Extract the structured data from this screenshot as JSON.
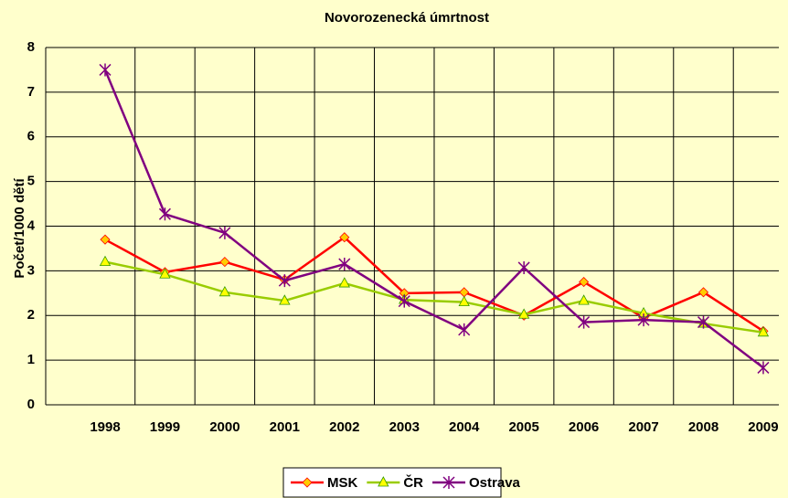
{
  "chart_data": {
    "type": "line",
    "title": "Novorozenecká úmrtnost",
    "y_label": "Počet/1000 dětí",
    "categories": [
      "1998",
      "1999",
      "2000",
      "2001",
      "2002",
      "2003",
      "2004",
      "2005",
      "2006",
      "2007",
      "2008",
      "2009"
    ],
    "series": [
      {
        "name": "MSK",
        "color": "#ff0000",
        "marker": "diamond",
        "values": [
          3.7,
          2.97,
          3.2,
          2.8,
          3.75,
          2.5,
          2.52,
          2.0,
          2.75,
          1.95,
          2.52,
          1.65
        ]
      },
      {
        "name": "ČR",
        "color": "#99cc00",
        "marker": "triangle",
        "values": [
          3.2,
          2.92,
          2.52,
          2.33,
          2.72,
          2.35,
          2.3,
          2.02,
          2.33,
          2.05,
          1.82,
          1.62
        ]
      },
      {
        "name": "Ostrava",
        "color": "#800080",
        "marker": "star",
        "values": [
          7.5,
          4.27,
          3.85,
          2.78,
          3.15,
          2.32,
          1.68,
          3.07,
          1.85,
          1.9,
          1.85,
          0.83
        ]
      }
    ],
    "ylim": [
      0,
      8
    ],
    "yticks": [
      0,
      1,
      2,
      3,
      4,
      5,
      6,
      7,
      8
    ],
    "grid": true,
    "legend": "bottom"
  }
}
